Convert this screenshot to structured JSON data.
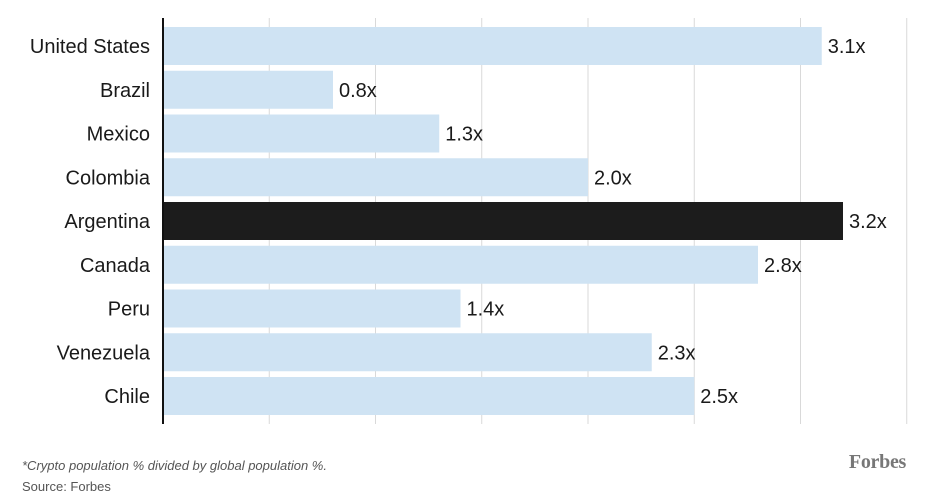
{
  "chart_data": {
    "type": "bar",
    "orientation": "horizontal",
    "categories": [
      "United States",
      "Brazil",
      "Mexico",
      "Colombia",
      "Argentina",
      "Canada",
      "Peru",
      "Venezuela",
      "Chile"
    ],
    "values": [
      3.1,
      0.8,
      1.3,
      2.0,
      3.2,
      2.8,
      1.4,
      2.3,
      2.5
    ],
    "value_labels": [
      "3.1x",
      "0.8x",
      "1.3x",
      "2.0x",
      "3.2x",
      "2.8x",
      "1.4x",
      "2.3x",
      "2.5x"
    ],
    "highlighted_category": "Argentina",
    "xlim": [
      0,
      3.5
    ],
    "grid": true,
    "colors": {
      "bar": "#cfe3f3",
      "highlight": "#1c1c1c"
    }
  },
  "footnote": "*Crypto population % divided by global population %.",
  "source": "Source: Forbes",
  "brand": "Forbes"
}
